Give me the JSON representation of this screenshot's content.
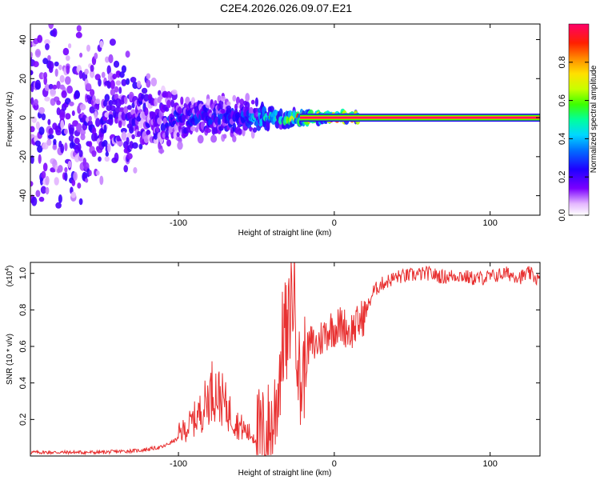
{
  "title": "C2E4.2026.026.09.07.E21",
  "chart_data": [
    {
      "type": "heatmap",
      "xlabel": "Height of straight line (km)",
      "ylabel": "Frequency (Hz)",
      "xlim": [
        -195,
        132
      ],
      "ylim": [
        -50,
        48
      ],
      "xticks": [
        -100,
        0,
        100
      ],
      "yticks": [
        -40,
        -20,
        0,
        20,
        40
      ],
      "colorbar": {
        "label": "Normalized spectral amplitude",
        "range": [
          0,
          1
        ],
        "ticks": [
          0.0,
          0.2,
          0.4,
          0.6,
          0.8
        ]
      },
      "description_points": [
        {
          "x": -180,
          "y_spread": 48,
          "amplitude": 0.15
        },
        {
          "x": -110,
          "y_spread": 12,
          "amplitude": 0.25
        },
        {
          "x": -60,
          "y_spread": 8,
          "amplitude": 0.3
        },
        {
          "x": -40,
          "y_spread": 4,
          "amplitude": 0.5
        },
        {
          "x": -20,
          "y_spread": 3,
          "amplitude": 0.8
        },
        {
          "x": 0,
          "y_spread": 2,
          "amplitude": 0.9
        },
        {
          "x": 132,
          "y_spread": 1,
          "amplitude": 0.98
        }
      ]
    },
    {
      "type": "line",
      "xlabel": "Height of straight line (km)",
      "ylabel": "SNR (10 * v/v)",
      "yscale_label": "(x10",
      "yscale_exponent": "4",
      "yscale_suffix": ")",
      "xlim": [
        -195,
        132
      ],
      "ylim": [
        0,
        1.06
      ],
      "xticks": [
        -100,
        0,
        100
      ],
      "yticks": [
        0.2,
        0.4,
        0.6,
        0.8,
        1.0
      ],
      "series": [
        {
          "name": "SNR",
          "color": "#e83030",
          "x": [
            -195,
            -150,
            -125,
            -110,
            -95,
            -85,
            -78,
            -72,
            -68,
            -62,
            -55,
            -50,
            -45,
            -40,
            -37,
            -34,
            -32,
            -30,
            -28,
            -26,
            -24,
            -22,
            -20,
            -18,
            -15,
            -12,
            -8,
            -5,
            -2,
            0,
            5,
            10,
            15,
            20,
            25,
            30,
            35,
            40,
            50,
            60,
            70,
            80,
            90,
            100,
            110,
            115,
            120,
            125,
            132
          ],
          "y": [
            0.02,
            0.02,
            0.03,
            0.05,
            0.12,
            0.2,
            0.3,
            0.25,
            0.2,
            0.14,
            0.1,
            0.08,
            0.1,
            0.15,
            0.3,
            0.55,
            0.72,
            0.6,
            0.85,
            0.9,
            0.7,
            0.35,
            0.45,
            0.55,
            0.62,
            0.6,
            0.65,
            0.68,
            0.7,
            0.7,
            0.72,
            0.68,
            0.72,
            0.78,
            0.9,
            0.94,
            0.96,
            0.98,
            0.99,
            1.0,
            0.98,
            0.99,
            0.97,
            0.98,
            1.0,
            0.99,
            0.98,
            1.0,
            0.96
          ]
        }
      ]
    }
  ]
}
